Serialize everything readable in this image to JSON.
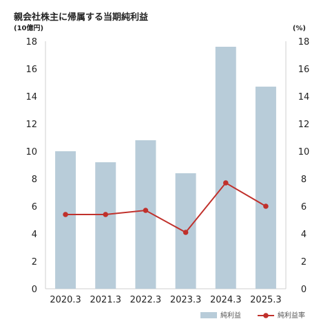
{
  "chart_data": {
    "type": "bar",
    "title": "親会社株主に帰属する当期純利益",
    "left_unit": "(10億円)",
    "right_unit": "(%)",
    "categories": [
      "2020.3",
      "2021.3",
      "2022.3",
      "2023.3",
      "2024.3",
      "2025.3"
    ],
    "y_ticks": [
      "0",
      "2",
      "4",
      "6",
      "8",
      "10",
      "12",
      "14",
      "16",
      "18"
    ],
    "y2_ticks": [
      "0",
      "2",
      "4",
      "6",
      "8",
      "10",
      "12",
      "14",
      "16",
      "18"
    ],
    "ylim": [
      0,
      18
    ],
    "y2lim": [
      0,
      18
    ],
    "grid": false,
    "legend_placement": "bottom-right",
    "series": [
      {
        "name": "純利益",
        "type": "bar",
        "axis": "left",
        "color": "#b8ccd9",
        "values": [
          10.0,
          9.2,
          10.8,
          8.4,
          17.6,
          14.7
        ]
      },
      {
        "name": "純利益率",
        "type": "line",
        "axis": "right",
        "color": "#c0302b",
        "values": [
          5.4,
          5.4,
          5.7,
          4.1,
          7.7,
          6.0
        ]
      }
    ]
  }
}
